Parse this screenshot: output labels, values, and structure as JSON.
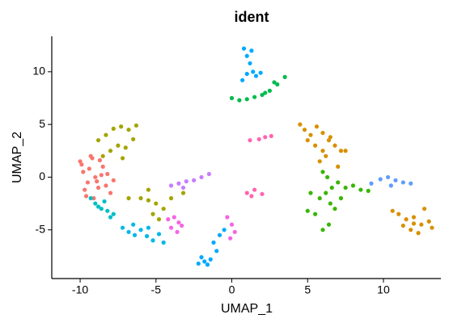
{
  "chart_data": {
    "type": "scatter",
    "title": "ident",
    "x_label": "UMAP_1",
    "y_label": "UMAP_2",
    "xlim": [
      -11.87,
      13.79
    ],
    "ylim": [
      -9.62,
      13.36
    ],
    "xticks": [
      -10,
      -5,
      0,
      5,
      10
    ],
    "yticks": [
      -5,
      0,
      5,
      10
    ],
    "series": [
      {
        "color": "#F8766D",
        "x": [
          -10,
          -9.8,
          -9.5,
          -9.2,
          -9,
          -8.8,
          -8.5,
          -8.2,
          -8,
          -9.7,
          -9.3,
          -8.7,
          -8.3,
          -9.9,
          -9.1,
          -8.6,
          -7.8,
          -9.4,
          -8.9,
          -9.6
        ],
        "values": [
          1.5,
          0.5,
          -0.5,
          1.8,
          0,
          -1,
          1,
          0.3,
          -1.5,
          -1.2,
          2,
          1.6,
          -0.8,
          1.2,
          -2,
          0.2,
          -0.3,
          0.8,
          -0.4,
          -1.8
        ]
      },
      {
        "color": "#A3A500",
        "x": [
          -8.8,
          -8.3,
          -7.8,
          -7.3,
          -6.8,
          -6.3,
          -8,
          -7.5,
          -7,
          -6.5,
          -8.5,
          -7.2,
          -6.8,
          -6,
          -5.5,
          -5,
          -4.5,
          -5.2,
          -4.8,
          -5.5,
          -4,
          -3.2
        ],
        "values": [
          3.5,
          4,
          4.6,
          4.8,
          4.5,
          4.9,
          2.5,
          3,
          2.8,
          3.6,
          2,
          1.8,
          -2,
          -2,
          -2.2,
          -2.5,
          -3,
          -3.5,
          -4,
          -1.2,
          -2,
          -1.5
        ]
      },
      {
        "color": "#D89000",
        "x": [
          4.8,
          5.2,
          5.6,
          6,
          6.4,
          6.8,
          7.2,
          5,
          5.5,
          6,
          6.5,
          5.8,
          6.2,
          7,
          7.5,
          4.5,
          11,
          11.5,
          12,
          12.5,
          13,
          11.8,
          12.3,
          12.7,
          11.3,
          13.2,
          10.6,
          12
        ],
        "values": [
          4.5,
          4,
          4.8,
          4.2,
          3.5,
          3,
          2.5,
          3.5,
          3,
          2.5,
          3.8,
          1.5,
          2,
          1,
          2.5,
          5,
          -3.5,
          -4,
          -3.8,
          -4.5,
          -4.2,
          -5,
          -5.3,
          -3,
          -4.6,
          -4.8,
          -3.2,
          -4.4
        ]
      },
      {
        "color": "#39B600",
        "x": [
          6,
          6.3,
          6.6,
          6.2,
          5.8,
          6.5,
          7,
          6.8,
          5.5,
          5,
          6.4,
          7.5,
          8,
          8.5,
          9,
          6,
          5.2,
          7.2
        ],
        "values": [
          0.5,
          0,
          -1,
          -1.5,
          -2,
          -2.5,
          -0.5,
          -3,
          -3.5,
          -3.2,
          -4.5,
          -1,
          -0.8,
          -1.2,
          -1.3,
          -5,
          -1.5,
          -2
        ]
      },
      {
        "color": "#00BB4E",
        "x": [
          0,
          0.5,
          1,
          1.5,
          2,
          2.5,
          3,
          3.5,
          2.8,
          2.2
        ],
        "values": [
          7.5,
          7.3,
          7.4,
          7.6,
          7.8,
          8.2,
          8.8,
          9.5,
          9,
          8
        ]
      },
      {
        "color": "#00BFC4",
        "x": [
          -9.3,
          -9,
          -8.6,
          -8.2,
          -7.8,
          -8.8,
          -8.4,
          -8
        ],
        "values": [
          -2,
          -2.5,
          -3,
          -3.2,
          -3.5,
          -2.8,
          -2.3,
          -3.8
        ]
      },
      {
        "color": "#00B8E7",
        "x": [
          -7.2,
          -6.8,
          -6.4,
          -6,
          -5.6,
          -5.2,
          -4.8,
          -6.5,
          -5.5,
          -4.5
        ],
        "values": [
          -4.8,
          -5.2,
          -5.5,
          -5,
          -5.6,
          -6,
          -5.4,
          -4.5,
          -4.8,
          -6.2
        ]
      },
      {
        "color": "#00A9FF",
        "x": [
          0.8,
          1,
          1.2,
          1,
          0.7,
          1.4,
          1.6,
          1.9,
          1.3,
          -2.2,
          -1.8,
          -1.4,
          -1,
          -1.2,
          -0.8,
          -0.5,
          -2,
          -1.6
        ],
        "values": [
          12.2,
          11.5,
          10.8,
          9.8,
          9.2,
          10,
          9.6,
          9.9,
          12,
          -8.2,
          -8,
          -7.8,
          -7,
          -6.2,
          -5.5,
          -5,
          -7.6,
          -8.3
        ]
      },
      {
        "color": "#619CFF",
        "x": [
          9.2,
          9.8,
          10.3,
          10.8,
          11.3,
          11.8,
          10.5
        ],
        "values": [
          -0.6,
          -0.2,
          0,
          -0.3,
          -0.5,
          -0.6,
          -0.8
        ]
      },
      {
        "color": "#C77CFF",
        "x": [
          -4,
          -3.5,
          -3,
          -2.5,
          -2,
          -1.5,
          -3.2
        ],
        "values": [
          -0.8,
          -0.6,
          -0.4,
          -0.3,
          0,
          0.3,
          -1
        ]
      },
      {
        "color": "#F564E3",
        "x": [
          -4.2,
          -3.8,
          -3.5,
          -3.3,
          -4,
          -3.6,
          -0.3,
          0,
          0.2,
          -0.1
        ],
        "values": [
          -4,
          -3.8,
          -4.3,
          -4.6,
          -4.8,
          -5.2,
          -3.8,
          -4.5,
          -5.2,
          -5.8
        ]
      },
      {
        "color": "#FF64B0",
        "x": [
          1,
          1.5,
          2,
          1.3,
          1.8,
          2.2,
          2.6,
          1.2
        ],
        "values": [
          -1.5,
          -1.2,
          -1.6,
          -1.8,
          3.6,
          3.8,
          3.9,
          3.5
        ]
      }
    ]
  }
}
